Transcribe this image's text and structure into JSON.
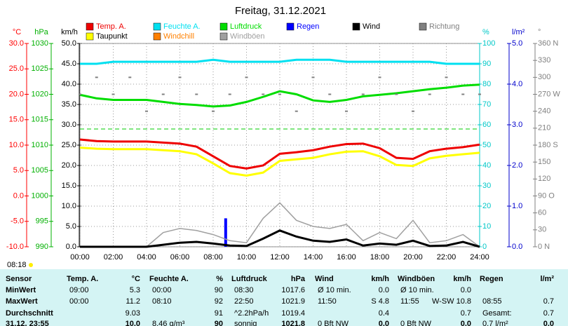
{
  "chart_data": {
    "type": "line",
    "title": "Freitag, 31.12.2021",
    "sunrise": "08:18",
    "x": [
      0,
      1,
      2,
      3,
      4,
      5,
      6,
      7,
      8,
      9,
      10,
      11,
      12,
      13,
      14,
      15,
      16,
      17,
      18,
      19,
      20,
      21,
      22,
      23,
      24
    ],
    "xlim": [
      0,
      24
    ],
    "xticks": [
      {
        "value": 0,
        "label": "00:00"
      },
      {
        "value": 2,
        "label": "02:00"
      },
      {
        "value": 4,
        "label": "04:00"
      },
      {
        "value": 6,
        "label": "06:00"
      },
      {
        "value": 8,
        "label": "08:00"
      },
      {
        "value": 10,
        "label": "10:00"
      },
      {
        "value": 12,
        "label": "12:00"
      },
      {
        "value": 14,
        "label": "14:00"
      },
      {
        "value": 16,
        "label": "16:00"
      },
      {
        "value": 18,
        "label": "18:00"
      },
      {
        "value": 20,
        "label": "20:00"
      },
      {
        "value": 22,
        "label": "22:00"
      },
      {
        "value": 24,
        "label": "24:00"
      }
    ],
    "grid": true,
    "axes": [
      {
        "unit": "°C",
        "color": "#ff0000",
        "side": "left",
        "lim": [
          -10,
          30
        ],
        "ticks": [
          {
            "value": -10,
            "label": "-10.0"
          },
          {
            "value": -5,
            "label": "-5.0"
          },
          {
            "value": 0,
            "label": "0.0"
          },
          {
            "value": 5,
            "label": "5.0"
          },
          {
            "value": 10,
            "label": "10.0"
          },
          {
            "value": 15,
            "label": "15.0"
          },
          {
            "value": 20,
            "label": "20.0"
          },
          {
            "value": 25,
            "label": "25.0"
          },
          {
            "value": 30,
            "label": "30.0"
          }
        ]
      },
      {
        "unit": "hPa",
        "color": "#00b000",
        "side": "left",
        "lim": [
          990,
          1030
        ],
        "ticks": [
          990,
          995,
          1000,
          1005,
          1010,
          1015,
          1020,
          1025,
          1030
        ]
      },
      {
        "unit": "km/h",
        "color": "#000000",
        "side": "left",
        "lim": [
          0,
          50
        ],
        "ticks": [
          {
            "value": 0,
            "label": "0.0"
          },
          {
            "value": 5,
            "label": "5.0"
          },
          {
            "value": 10,
            "label": "10.0"
          },
          {
            "value": 15,
            "label": "15.0"
          },
          {
            "value": 20,
            "label": "20.0"
          },
          {
            "value": 25,
            "label": "25.0"
          },
          {
            "value": 30,
            "label": "30.0"
          },
          {
            "value": 35,
            "label": "35.0"
          },
          {
            "value": 40,
            "label": "40.0"
          },
          {
            "value": 45,
            "label": "45.0"
          },
          {
            "value": 50,
            "label": "50.0"
          }
        ]
      },
      {
        "unit": "%",
        "color": "#00c8c8",
        "side": "right",
        "lim": [
          0,
          100
        ],
        "ticks": [
          0,
          10,
          20,
          30,
          40,
          50,
          60,
          70,
          80,
          90,
          100
        ]
      },
      {
        "unit": "l/m²",
        "color": "#0000cc",
        "side": "right",
        "lim": [
          0,
          5
        ],
        "ticks": [
          {
            "value": 0,
            "label": "0.0"
          },
          {
            "value": 1,
            "label": "1.0"
          },
          {
            "value": 2,
            "label": "2.0"
          },
          {
            "value": 3,
            "label": "3.0"
          },
          {
            "value": 4,
            "label": "4.0"
          },
          {
            "value": 5,
            "label": "5.0"
          }
        ]
      },
      {
        "unit": "°",
        "color": "#808080",
        "side": "right",
        "lim": [
          0,
          360
        ],
        "ticks": [
          {
            "value": 0,
            "label": "0   N"
          },
          {
            "value": 30,
            "label": "30"
          },
          {
            "value": 60,
            "label": "60"
          },
          {
            "value": 90,
            "label": "90  O"
          },
          {
            "value": 120,
            "label": "120"
          },
          {
            "value": 150,
            "label": "150"
          },
          {
            "value": 180,
            "label": "180 S"
          },
          {
            "value": 210,
            "label": "210"
          },
          {
            "value": 240,
            "label": "240"
          },
          {
            "value": 270,
            "label": "270 W"
          },
          {
            "value": 300,
            "label": "300"
          },
          {
            "value": 330,
            "label": "330"
          },
          {
            "value": 360,
            "label": "360 N"
          }
        ]
      }
    ],
    "series": [
      {
        "name": "Temp. A.",
        "color": "#ee0000",
        "axis": 0,
        "style": "line",
        "values": [
          11.1,
          10.8,
          10.7,
          10.7,
          10.7,
          10.5,
          10.3,
          9.7,
          7.8,
          5.9,
          5.4,
          6.0,
          8.3,
          8.6,
          9.0,
          9.7,
          10.2,
          10.3,
          9.4,
          7.5,
          7.3,
          8.8,
          9.3,
          9.6,
          10.1
        ]
      },
      {
        "name": "Taupunkt",
        "color": "#ffff00",
        "axis": 0,
        "style": "line",
        "values": [
          9.5,
          9.3,
          9.2,
          9.2,
          9.2,
          9.0,
          8.8,
          8.2,
          6.4,
          4.5,
          4.0,
          4.6,
          6.9,
          7.2,
          7.5,
          8.2,
          8.7,
          8.8,
          7.8,
          6.1,
          5.9,
          7.4,
          7.9,
          8.2,
          8.5
        ]
      },
      {
        "name": "Feuchte A.",
        "color": "#00e0f0",
        "axis": 3,
        "style": "line",
        "values": [
          90,
          90,
          91,
          91,
          91,
          91,
          91,
          91,
          92,
          91,
          91,
          91,
          91,
          92,
          92,
          92,
          91,
          91,
          91,
          91,
          91,
          91,
          90,
          90,
          90
        ]
      },
      {
        "name": "Windchill",
        "color": "#ff8000",
        "axis": 0,
        "style": "line",
        "values": [
          null,
          null,
          null,
          null,
          null,
          null,
          null,
          null,
          null,
          null,
          null,
          null,
          null,
          null,
          null,
          null,
          null,
          null,
          null,
          null,
          null,
          null,
          null,
          null,
          null
        ]
      },
      {
        "name": "Luftdruck",
        "color": "#00dd00",
        "axis": 1,
        "style": "line",
        "values": [
          1019.9,
          1019.2,
          1018.9,
          1018.9,
          1018.9,
          1018.5,
          1018.1,
          1017.9,
          1017.6,
          1017.8,
          1018.5,
          1019.5,
          1020.6,
          1020.0,
          1018.8,
          1018.5,
          1018.9,
          1019.6,
          1019.9,
          1020.2,
          1020.6,
          1021.0,
          1021.3,
          1021.7,
          1021.9
        ]
      },
      {
        "name": "Regen",
        "color": "#0000ff",
        "axis": 4,
        "style": "bar",
        "x": [
          8.75
        ],
        "values": [
          0.7
        ]
      },
      {
        "name": "Windböen",
        "color": "#a0a0a0",
        "axis": 2,
        "style": "thin",
        "values": [
          0,
          0,
          0,
          0,
          0,
          3.5,
          4.5,
          4.0,
          3.0,
          1.5,
          1.0,
          7.0,
          10.8,
          6.5,
          5.0,
          4.5,
          5.5,
          1.5,
          3.5,
          2.0,
          6.5,
          1.0,
          1.5,
          3.0,
          0
        ]
      },
      {
        "name": "Wind",
        "color": "#000000",
        "axis": 2,
        "style": "line",
        "values": [
          0,
          0,
          0,
          0,
          0,
          0.5,
          1.0,
          1.2,
          0.8,
          0.3,
          0.2,
          2.0,
          4.0,
          2.5,
          1.5,
          1.2,
          1.8,
          0.3,
          0.8,
          0.5,
          1.5,
          0.2,
          0.3,
          1.2,
          0
        ]
      },
      {
        "name": "Richtung",
        "color": "#808080",
        "axis": 5,
        "style": "dots",
        "values": [
          270,
          300,
          270,
          300,
          240,
          270,
          300,
          270,
          240,
          270,
          300,
          270,
          270,
          240,
          300,
          270,
          240,
          270,
          300,
          270,
          240,
          270,
          300,
          270,
          270
        ]
      }
    ]
  },
  "table": {
    "header": [
      [
        "Sensor"
      ],
      [
        "Temp. A.",
        "°C"
      ],
      [
        "Feuchte A.",
        "%"
      ],
      [
        "Luftdruck",
        "hPa"
      ],
      [
        "Wind",
        "km/h"
      ],
      [
        "Windböen",
        "km/h"
      ],
      [
        "Regen",
        "l/m²"
      ]
    ],
    "rows": [
      {
        "label": "MinWert",
        "cells": [
          [
            "09:00",
            "5.3"
          ],
          [
            "00:00",
            "90"
          ],
          [
            "08:30",
            "1017.6"
          ],
          [
            "Ø 10 min.",
            "0.0"
          ],
          [
            "Ø 10 min.",
            "0.0"
          ],
          [
            null,
            null
          ]
        ]
      },
      {
        "label": "MaxWert",
        "cells": [
          [
            "00:00",
            "11.2"
          ],
          [
            "08:10",
            "92"
          ],
          [
            "22:50",
            "1021.9"
          ],
          [
            "11:50",
            "S 4.8"
          ],
          [
            "11:55",
            "W-SW 10.8"
          ],
          [
            "08:55",
            "0.7"
          ]
        ]
      },
      {
        "label": "Durchschnitt",
        "cells": [
          [
            null,
            "9.03"
          ],
          [
            null,
            "91"
          ],
          [
            "^2.2hPa/h",
            "1019.4"
          ],
          [
            null,
            "0.4"
          ],
          [
            null,
            "0.7"
          ],
          [
            "Gesamt:",
            "0.7"
          ]
        ]
      },
      {
        "label": "31.12. 23:55",
        "cells": [
          [
            null,
            "10.0"
          ],
          [
            "8.46 g/m³",
            "90"
          ],
          [
            "sonnig",
            "1021.8"
          ],
          [
            "0 Bft NW",
            "0.0"
          ],
          [
            "0 Bft NW",
            "0.0"
          ],
          [
            "0.7 l/m²",
            "0.0"
          ]
        ]
      }
    ]
  }
}
